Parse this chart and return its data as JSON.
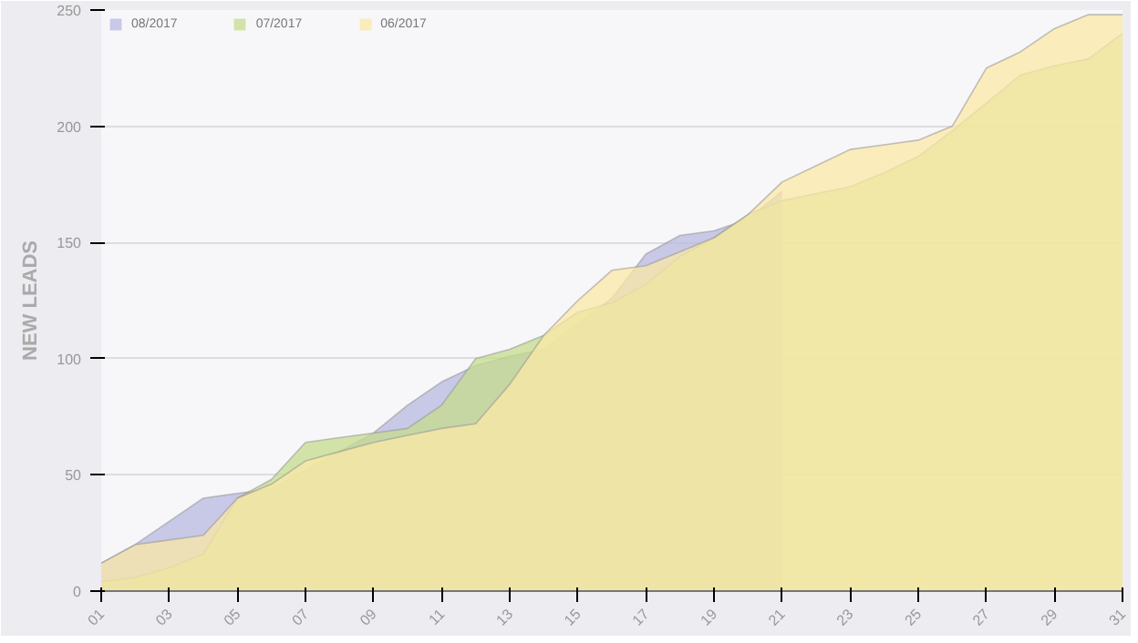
{
  "chart_data": {
    "type": "area",
    "ylabel": "NEW LEADS",
    "x": [
      1,
      2,
      3,
      4,
      5,
      6,
      7,
      8,
      9,
      10,
      11,
      12,
      13,
      14,
      15,
      16,
      17,
      18,
      19,
      20,
      21,
      22,
      23,
      24,
      25,
      26,
      27,
      28,
      29,
      30,
      31
    ],
    "series": [
      {
        "name": "08/2017",
        "color": "#b8b8e0",
        "x": [
          1,
          2,
          3,
          4,
          5,
          6,
          7,
          8,
          9,
          10,
          11,
          12,
          13,
          14,
          15,
          16,
          17,
          18,
          19,
          20,
          21
        ],
        "values": [
          12,
          20,
          30,
          40,
          42,
          44,
          52,
          60,
          68,
          80,
          90,
          97,
          101,
          104,
          115,
          126,
          145,
          153,
          155,
          160,
          172
        ]
      },
      {
        "name": "07/2017",
        "color": "#c5dc8c",
        "values": [
          4,
          6,
          10,
          16,
          40,
          48,
          64,
          66,
          68,
          70,
          80,
          100,
          104,
          110,
          120,
          124,
          132,
          144,
          152,
          162,
          168,
          171,
          174,
          180,
          187,
          198,
          210,
          222,
          226,
          229,
          240
        ]
      },
      {
        "name": "06/2017",
        "color": "#fbe8a6",
        "values": [
          12,
          20,
          22,
          24,
          40,
          46,
          56,
          60,
          64,
          67,
          70,
          72,
          89,
          110,
          125,
          138,
          140,
          146,
          152,
          162,
          176,
          183,
          190,
          192,
          194,
          200,
          225,
          232,
          242,
          248,
          248
        ]
      }
    ],
    "xlim": [
      1,
      31
    ],
    "xticks": [
      {
        "value": 1,
        "label": "01"
      },
      {
        "value": 3,
        "label": "03"
      },
      {
        "value": 5,
        "label": "05"
      },
      {
        "value": 7,
        "label": "07"
      },
      {
        "value": 9,
        "label": "09"
      },
      {
        "value": 11,
        "label": "11"
      },
      {
        "value": 13,
        "label": "13"
      },
      {
        "value": 15,
        "label": "15"
      },
      {
        "value": 17,
        "label": "17"
      },
      {
        "value": 19,
        "label": "19"
      },
      {
        "value": 21,
        "label": "21"
      },
      {
        "value": 23,
        "label": "23"
      },
      {
        "value": 25,
        "label": "25"
      },
      {
        "value": 27,
        "label": "27"
      },
      {
        "value": 29,
        "label": "29"
      },
      {
        "value": 31,
        "label": "31"
      }
    ],
    "ylim": [
      0,
      250
    ],
    "yticks": [
      0,
      50,
      100,
      150,
      200,
      250
    ],
    "grid": "y",
    "legend": "top left"
  }
}
